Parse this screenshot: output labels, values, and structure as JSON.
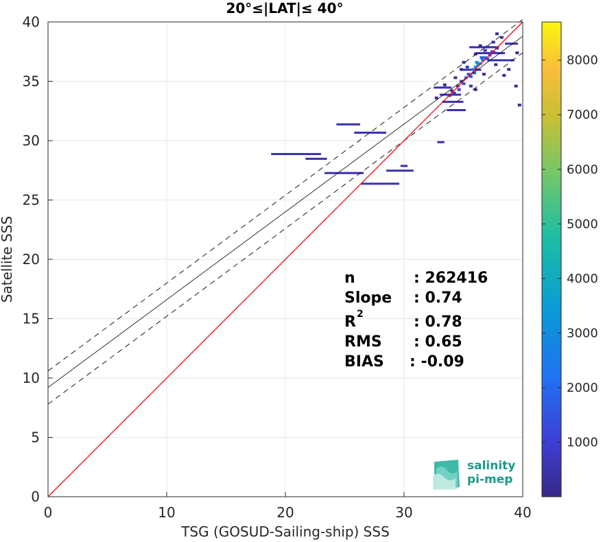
{
  "chart_data": {
    "type": "scatter",
    "title": "20°≤|LAT|≤ 40°",
    "xlabel": "TSG (GOSUD-Sailing-ship) SSS",
    "ylabel": "Satellite SSS",
    "xlim": [
      0,
      40
    ],
    "ylim": [
      0,
      40
    ],
    "xticks": [
      "0",
      "10",
      "20",
      "30",
      "40"
    ],
    "yticks": [
      "0",
      "5",
      "10",
      "15",
      "20",
      "25",
      "30",
      "35",
      "40"
    ],
    "grid": true,
    "colorbar": {
      "range": [
        0,
        8700
      ],
      "ticks": [
        "1000",
        "2000",
        "3000",
        "4000",
        "5000",
        "6000",
        "7000",
        "8000"
      ],
      "colormap": "parula"
    },
    "lines": {
      "identity": {
        "slope": 1,
        "intercept": 0,
        "color": "#ff0000"
      },
      "regression": {
        "slope": 0.74,
        "intercept": 9.2,
        "color": "#000000"
      },
      "upper": {
        "slope": 0.74,
        "intercept": 10.6,
        "color": "#000000"
      },
      "lower": {
        "slope": 0.74,
        "intercept": 7.8,
        "color": "#000000"
      }
    },
    "stats": {
      "n_label": "n",
      "n_value": ": 262416",
      "slope_label": "Slope",
      "slope_value": ": 0.74",
      "r2_label": "R",
      "r2_sup": "2",
      "r2_value": ": 0.78",
      "rms_label": "RMS",
      "rms_value": ": 0.65",
      "bias_label": "BIAS",
      "bias_value": ": -0.09"
    },
    "segments": [
      {
        "x0": 18.8,
        "x1": 23.0,
        "y": 28.9
      },
      {
        "x0": 21.7,
        "x1": 23.5,
        "y": 28.5
      },
      {
        "x0": 23.3,
        "x1": 26.6,
        "y": 27.3
      },
      {
        "x0": 24.3,
        "x1": 26.3,
        "y": 31.4
      },
      {
        "x0": 25.8,
        "x1": 28.5,
        "y": 30.7
      },
      {
        "x0": 26.4,
        "x1": 29.6,
        "y": 26.4
      },
      {
        "x0": 28.5,
        "x1": 30.8,
        "y": 27.5
      },
      {
        "x0": 29.7,
        "x1": 30.3,
        "y": 27.9
      },
      {
        "x0": 32.8,
        "x1": 33.4,
        "y": 29.9
      },
      {
        "x0": 33.2,
        "x1": 35.0,
        "y": 33.3
      },
      {
        "x0": 33.6,
        "x1": 35.2,
        "y": 32.6
      },
      {
        "x0": 32.5,
        "x1": 34.0,
        "y": 34.5
      },
      {
        "x0": 35.5,
        "x1": 38.0,
        "y": 37.9
      },
      {
        "x0": 34.8,
        "x1": 36.5,
        "y": 36.0
      },
      {
        "x0": 36.0,
        "x1": 38.5,
        "y": 37.4
      },
      {
        "x0": 37.0,
        "x1": 39.3,
        "y": 36.8
      },
      {
        "x0": 38.5,
        "x1": 39.6,
        "y": 38.2
      },
      {
        "x0": 33.0,
        "x1": 34.8,
        "y": 33.9
      }
    ],
    "points": [
      {
        "x": 33.8,
        "y": 33.8,
        "c": 300
      },
      {
        "x": 34.0,
        "y": 34.2,
        "c": 600
      },
      {
        "x": 34.2,
        "y": 34.0,
        "c": 500
      },
      {
        "x": 34.5,
        "y": 34.6,
        "c": 900
      },
      {
        "x": 34.6,
        "y": 34.3,
        "c": 700
      },
      {
        "x": 34.8,
        "y": 35.0,
        "c": 1200
      },
      {
        "x": 35.0,
        "y": 34.8,
        "c": 1500
      },
      {
        "x": 35.2,
        "y": 35.3,
        "c": 1800
      },
      {
        "x": 35.4,
        "y": 35.6,
        "c": 1600
      },
      {
        "x": 35.6,
        "y": 35.4,
        "c": 1300
      },
      {
        "x": 35.8,
        "y": 36.0,
        "c": 2400
      },
      {
        "x": 36.0,
        "y": 36.2,
        "c": 2800
      },
      {
        "x": 36.2,
        "y": 36.4,
        "c": 3600
      },
      {
        "x": 36.4,
        "y": 36.5,
        "c": 2600
      },
      {
        "x": 36.6,
        "y": 36.8,
        "c": 2200
      },
      {
        "x": 36.8,
        "y": 37.0,
        "c": 1900
      },
      {
        "x": 37.0,
        "y": 36.9,
        "c": 1600
      },
      {
        "x": 37.2,
        "y": 37.2,
        "c": 1400
      },
      {
        "x": 37.4,
        "y": 37.5,
        "c": 1200
      },
      {
        "x": 37.6,
        "y": 37.4,
        "c": 900
      },
      {
        "x": 37.8,
        "y": 37.8,
        "c": 600
      },
      {
        "x": 36.1,
        "y": 36.6,
        "c": 3000
      },
      {
        "x": 35.9,
        "y": 35.7,
        "c": 2000
      },
      {
        "x": 36.5,
        "y": 37.0,
        "c": 1700
      },
      {
        "x": 35.3,
        "y": 36.2,
        "c": 600
      },
      {
        "x": 36.8,
        "y": 37.6,
        "c": 700
      },
      {
        "x": 37.5,
        "y": 38.3,
        "c": 400
      },
      {
        "x": 34.3,
        "y": 35.3,
        "c": 300
      },
      {
        "x": 35.0,
        "y": 36.6,
        "c": 250
      },
      {
        "x": 36.0,
        "y": 37.3,
        "c": 500
      },
      {
        "x": 37.0,
        "y": 37.9,
        "c": 400
      },
      {
        "x": 38.2,
        "y": 38.7,
        "c": 200
      },
      {
        "x": 35.6,
        "y": 34.6,
        "c": 300
      },
      {
        "x": 36.7,
        "y": 35.6,
        "c": 250
      },
      {
        "x": 37.7,
        "y": 36.4,
        "c": 200
      },
      {
        "x": 38.4,
        "y": 35.5,
        "c": 150
      },
      {
        "x": 39.7,
        "y": 33.0,
        "c": 100
      },
      {
        "x": 39.5,
        "y": 37.4,
        "c": 150
      },
      {
        "x": 37.8,
        "y": 39.0,
        "c": 120
      },
      {
        "x": 36.4,
        "y": 38.0,
        "c": 150
      },
      {
        "x": 34.8,
        "y": 36.0,
        "c": 200
      },
      {
        "x": 33.4,
        "y": 34.7,
        "c": 150
      },
      {
        "x": 32.7,
        "y": 33.6,
        "c": 150
      },
      {
        "x": 39.4,
        "y": 34.6,
        "c": 100
      },
      {
        "x": 36.0,
        "y": 34.3,
        "c": 150
      },
      {
        "x": 38.8,
        "y": 36.0,
        "c": 120
      }
    ],
    "logo": {
      "line1": "salinity",
      "line2": "pi-mep"
    }
  }
}
